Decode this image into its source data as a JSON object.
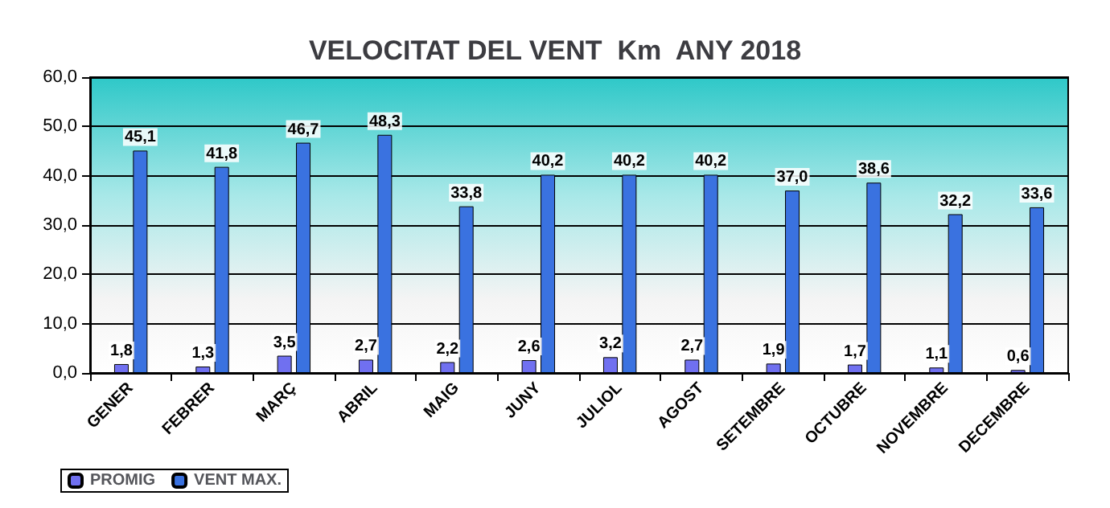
{
  "chart_data": {
    "type": "bar",
    "title": "VELOCITAT DEL VENT  Km  ANY 2018",
    "categories": [
      "GENER",
      "FEBRER",
      "MARÇ",
      "ABRIL",
      "MAIG",
      "JUNY",
      "JULIOL",
      "AGOST",
      "SETEMBRE",
      "OCTUBRE",
      "NOVEMBRE",
      "DECEMBRE"
    ],
    "series": [
      {
        "name": "PROMIG",
        "color": "#7070f0",
        "values": [
          1.8,
          1.3,
          3.5,
          2.7,
          2.2,
          2.6,
          3.2,
          2.7,
          1.9,
          1.7,
          1.1,
          0.6
        ],
        "value_labels": [
          "1,8",
          "1,3",
          "3,5",
          "2,7",
          "2,2",
          "2,6",
          "3,2",
          "2,7",
          "1,9",
          "1,7",
          "1,1",
          "0,6"
        ]
      },
      {
        "name": "VENT MAX.",
        "color": "#3a72e0",
        "values": [
          45.1,
          41.8,
          46.7,
          48.3,
          33.8,
          40.2,
          40.2,
          40.2,
          37.0,
          38.6,
          32.2,
          33.6
        ],
        "value_labels": [
          "45,1",
          "41,8",
          "46,7",
          "48,3",
          "33,8",
          "40,2",
          "40,2",
          "40,2",
          "37,0",
          "38,6",
          "32,2",
          "33,6"
        ]
      }
    ],
    "ylim": [
      0,
      60
    ],
    "yticks": [
      {
        "value": 0,
        "label": "0,0"
      },
      {
        "value": 10,
        "label": "10,0"
      },
      {
        "value": 20,
        "label": "20,0"
      },
      {
        "value": 30,
        "label": "30,0"
      },
      {
        "value": 40,
        "label": "40,0"
      },
      {
        "value": 50,
        "label": "50,0"
      },
      {
        "value": 60,
        "label": "60,0"
      }
    ],
    "grid": "y",
    "legend": "bottom left"
  }
}
